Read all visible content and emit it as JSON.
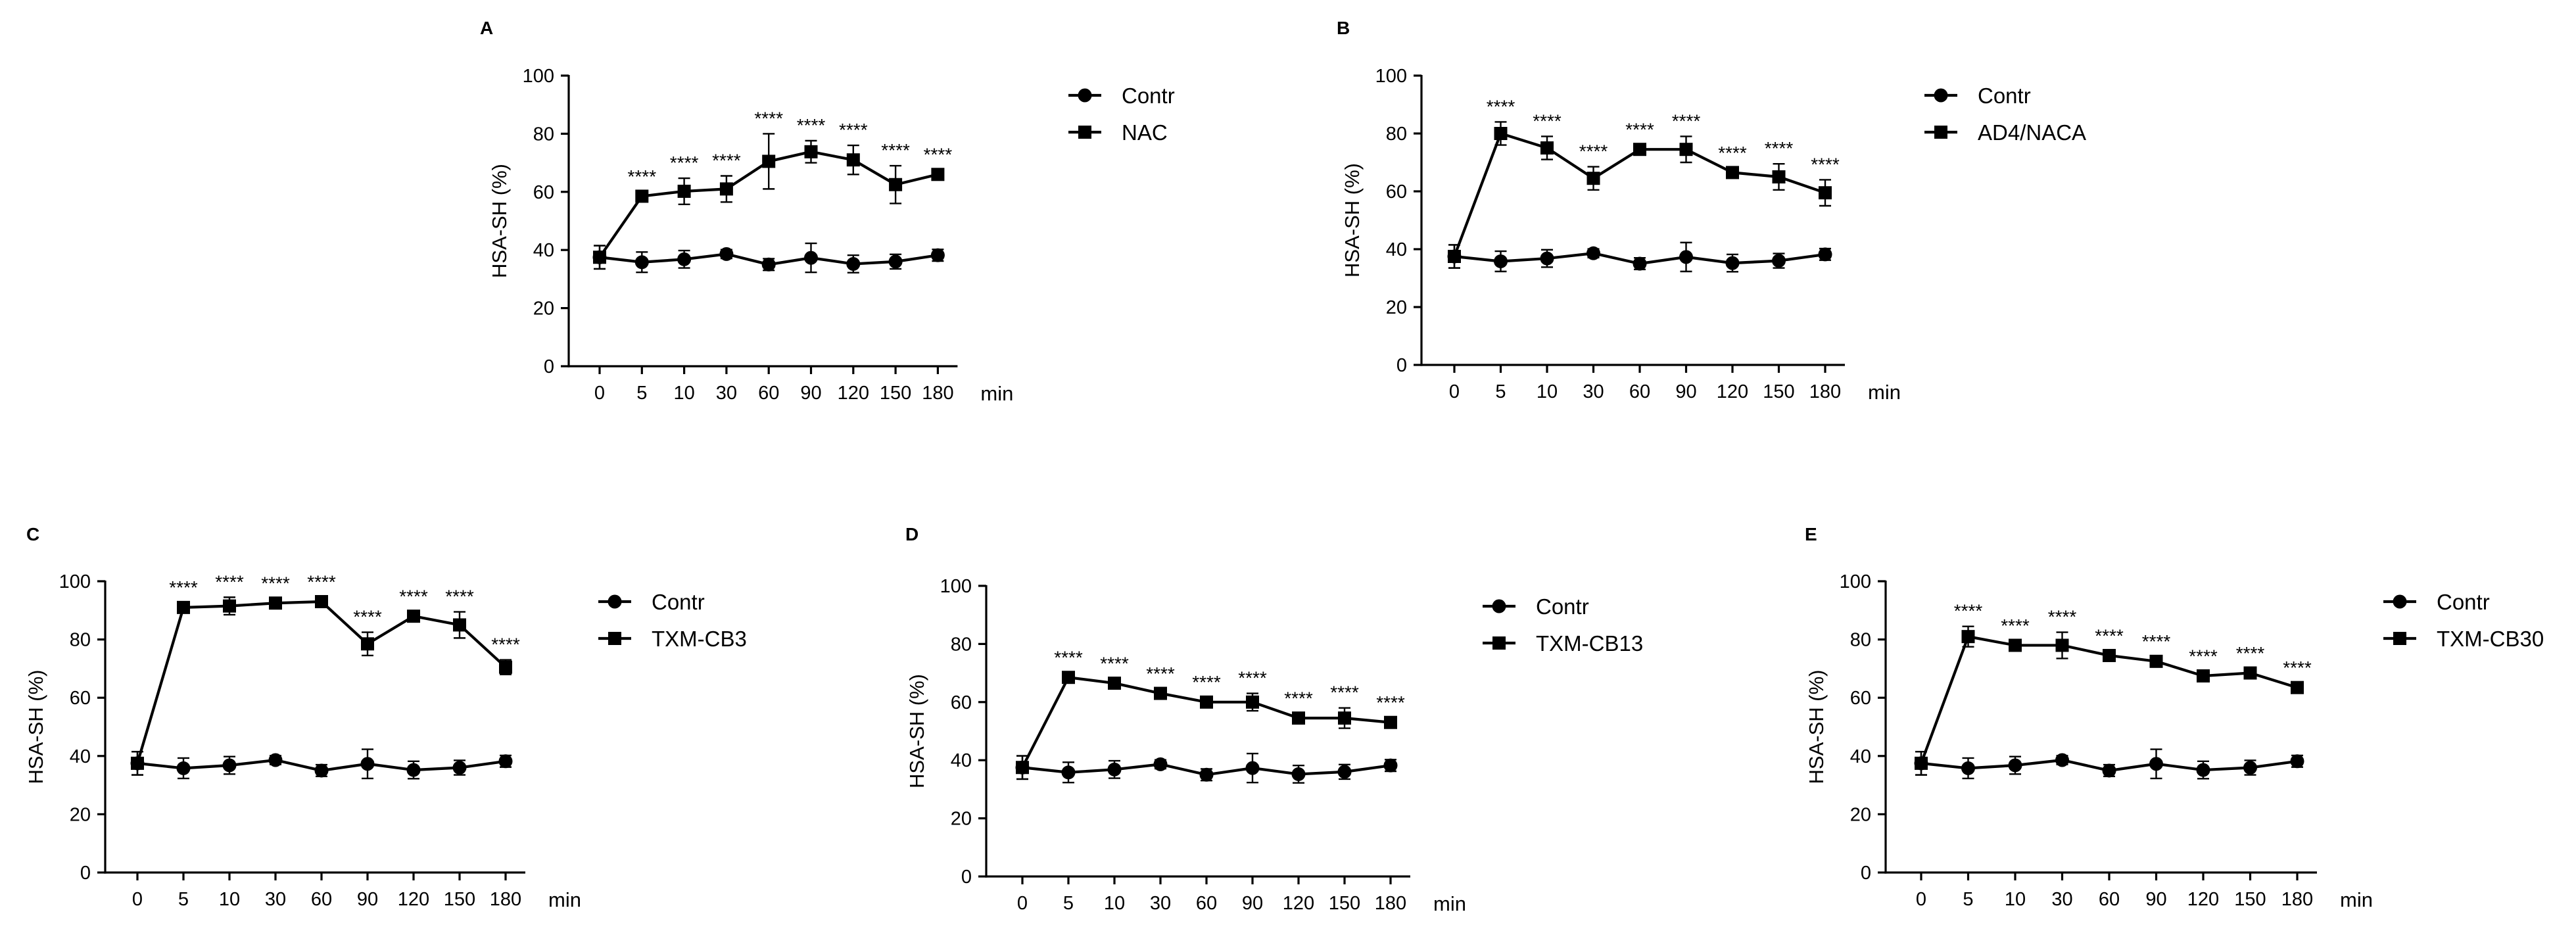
{
  "chart_data": [
    {
      "type": "line",
      "panel": "A",
      "xlabel": "min",
      "ylabel": "HSA-SH (%)",
      "ylim": [
        0,
        100
      ],
      "yticks": [
        "0",
        "20",
        "40",
        "60",
        "80",
        "100"
      ],
      "categories": [
        "0",
        "5",
        "10",
        "30",
        "60",
        "90",
        "120",
        "150",
        "180"
      ],
      "series": [
        {
          "name": "Contr",
          "marker": "circle",
          "values": [
            37.5,
            35.8,
            36.8,
            38.6,
            35.0,
            37.3,
            35.2,
            36.0,
            38.2
          ],
          "errors": [
            4.0,
            3.5,
            3.0,
            1.5,
            2.0,
            5.0,
            3.0,
            2.5,
            2.0
          ]
        },
        {
          "name": "NAC",
          "marker": "square",
          "values": [
            37.5,
            58.5,
            60.2,
            61.0,
            70.5,
            73.8,
            71.0,
            62.5,
            66.0
          ],
          "errors": [
            4.0,
            1.5,
            4.5,
            4.5,
            9.5,
            3.8,
            5.0,
            6.5,
            1.5
          ],
          "significance": [
            "",
            "****",
            "****",
            "****",
            "****",
            "****",
            "****",
            "****",
            "****"
          ]
        }
      ]
    },
    {
      "type": "line",
      "panel": "B",
      "xlabel": "min",
      "ylabel": "HSA-SH (%)",
      "ylim": [
        0,
        100
      ],
      "yticks": [
        "0",
        "20",
        "40",
        "60",
        "80",
        "100"
      ],
      "categories": [
        "0",
        "5",
        "10",
        "30",
        "60",
        "90",
        "120",
        "150",
        "180"
      ],
      "series": [
        {
          "name": "Contr",
          "marker": "circle",
          "values": [
            37.5,
            35.8,
            36.8,
            38.6,
            35.0,
            37.3,
            35.2,
            36.0,
            38.2
          ],
          "errors": [
            4.0,
            3.5,
            3.0,
            1.5,
            2.0,
            5.0,
            3.0,
            2.5,
            2.0
          ]
        },
        {
          "name": "AD4/NACA",
          "marker": "square",
          "values": [
            37.5,
            80.0,
            75.0,
            64.5,
            74.5,
            74.5,
            66.5,
            65.0,
            59.5
          ],
          "errors": [
            4.0,
            4.0,
            4.0,
            4.0,
            1.5,
            4.5,
            1.5,
            4.5,
            4.5
          ],
          "significance": [
            "",
            "****",
            "****",
            "****",
            "****",
            "****",
            "****",
            "****",
            "****"
          ]
        }
      ]
    },
    {
      "type": "line",
      "panel": "C",
      "xlabel": "min",
      "ylabel": "HSA-SH (%)",
      "ylim": [
        0,
        100
      ],
      "yticks": [
        "0",
        "20",
        "40",
        "60",
        "80",
        "100"
      ],
      "categories": [
        "0",
        "5",
        "10",
        "30",
        "60",
        "90",
        "120",
        "150",
        "180"
      ],
      "series": [
        {
          "name": "Contr",
          "marker": "circle",
          "values": [
            37.5,
            35.8,
            36.8,
            38.6,
            35.0,
            37.3,
            35.2,
            36.0,
            38.2
          ],
          "errors": [
            4.0,
            3.5,
            3.0,
            1.5,
            2.0,
            5.0,
            3.0,
            2.5,
            2.0
          ]
        },
        {
          "name": "TXM-CB3",
          "marker": "square",
          "values": [
            37.5,
            91.0,
            91.5,
            92.5,
            93.0,
            78.5,
            88.0,
            85.0,
            70.5
          ],
          "errors": [
            4.0,
            1.5,
            3.0,
            1.5,
            1.5,
            4.0,
            1.5,
            4.5,
            2.5
          ],
          "significance": [
            "",
            "****",
            "****",
            "****",
            "****",
            "****",
            "****",
            "****",
            "****"
          ]
        }
      ]
    },
    {
      "type": "line",
      "panel": "D",
      "xlabel": "min",
      "ylabel": "HSA-SH (%)",
      "ylim": [
        0,
        100
      ],
      "yticks": [
        "0",
        "20",
        "40",
        "60",
        "80",
        "100"
      ],
      "categories": [
        "0",
        "5",
        "10",
        "30",
        "60",
        "90",
        "120",
        "150",
        "180"
      ],
      "series": [
        {
          "name": "Contr",
          "marker": "circle",
          "values": [
            37.5,
            35.8,
            36.8,
            38.6,
            35.0,
            37.3,
            35.2,
            36.0,
            38.2
          ],
          "errors": [
            4.0,
            3.5,
            3.0,
            1.5,
            2.0,
            5.0,
            3.0,
            2.5,
            2.0
          ]
        },
        {
          "name": "TXM-CB13",
          "marker": "square",
          "values": [
            37.5,
            68.5,
            66.5,
            63.0,
            60.0,
            60.0,
            54.5,
            54.5,
            53.0
          ],
          "errors": [
            4.0,
            1.5,
            1.5,
            1.5,
            1.5,
            3.0,
            1.5,
            3.5,
            1.5
          ],
          "significance": [
            "",
            "****",
            "****",
            "****",
            "****",
            "****",
            "****",
            "****",
            "****"
          ]
        }
      ]
    },
    {
      "type": "line",
      "panel": "E",
      "xlabel": "min",
      "ylabel": "HSA-SH (%)",
      "ylim": [
        0,
        100
      ],
      "yticks": [
        "0",
        "20",
        "40",
        "60",
        "80",
        "100"
      ],
      "categories": [
        "0",
        "5",
        "10",
        "30",
        "60",
        "90",
        "120",
        "150",
        "180"
      ],
      "series": [
        {
          "name": "Contr",
          "marker": "circle",
          "values": [
            37.5,
            35.8,
            36.8,
            38.6,
            35.0,
            37.3,
            35.2,
            36.0,
            38.2
          ],
          "errors": [
            4.0,
            3.5,
            3.0,
            1.5,
            2.0,
            5.0,
            3.0,
            2.5,
            2.0
          ]
        },
        {
          "name": "TXM-CB30",
          "marker": "square",
          "values": [
            37.5,
            81.0,
            78.0,
            78.0,
            74.5,
            72.5,
            67.5,
            68.5,
            63.5
          ],
          "errors": [
            4.0,
            3.5,
            1.5,
            4.5,
            1.5,
            1.5,
            1.5,
            1.5,
            1.5
          ],
          "significance": [
            "",
            "****",
            "****",
            "****",
            "****",
            "****",
            "****",
            "****",
            "****"
          ]
        }
      ]
    }
  ]
}
